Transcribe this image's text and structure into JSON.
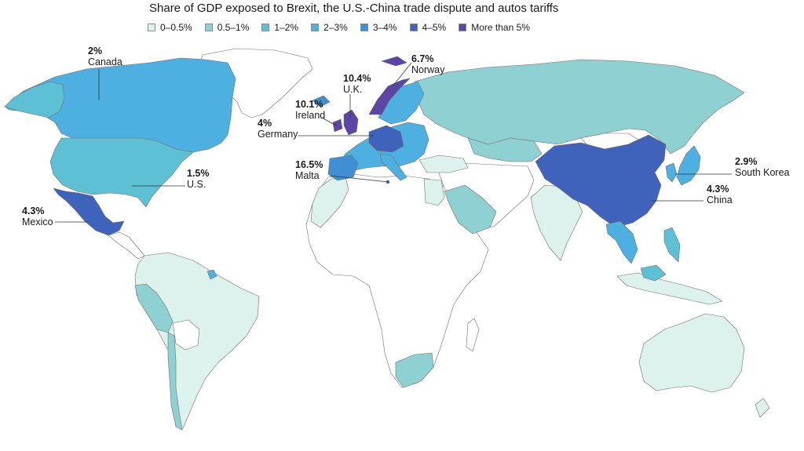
{
  "title": "Share of GDP exposed to Brexit, the U.S.-China trade dispute and autos tariffs",
  "legend": [
    {
      "label": "0–0.5%",
      "color": "#ddf2ec"
    },
    {
      "label": "0.5–1%",
      "color": "#8fd1d3"
    },
    {
      "label": "1–2%",
      "color": "#5ec0d5"
    },
    {
      "label": "2–3%",
      "color": "#4db0e1"
    },
    {
      "label": "3–4%",
      "color": "#3f8fd4"
    },
    {
      "label": "4–5%",
      "color": "#3f63bb"
    },
    {
      "label": "More than 5%",
      "color": "#5b46a5"
    }
  ],
  "annotations": [
    {
      "value": "2%",
      "name": "Canada"
    },
    {
      "value": "1.5%",
      "name": "U.S."
    },
    {
      "value": "4.3%",
      "name": "Mexico"
    },
    {
      "value": "6.7%",
      "name": "Norway"
    },
    {
      "value": "10.4%",
      "name": "U.K."
    },
    {
      "value": "10.1%",
      "name": "Ireland"
    },
    {
      "value": "4%",
      "name": "Germany"
    },
    {
      "value": "16.5%",
      "name": "Malta"
    },
    {
      "value": "2.9%",
      "name": "South Korea"
    },
    {
      "value": "4.3%",
      "name": "China"
    }
  ]
}
